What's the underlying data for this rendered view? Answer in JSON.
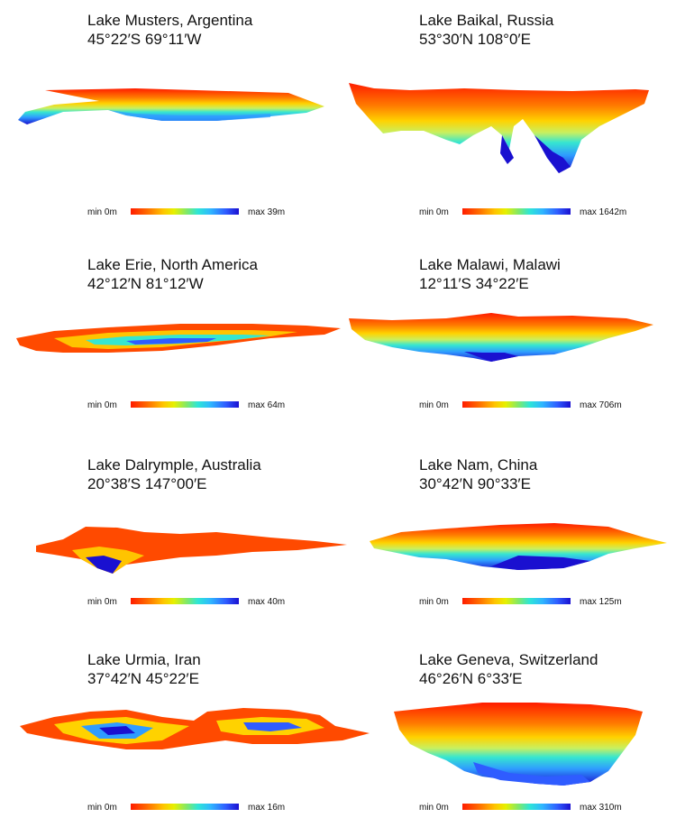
{
  "panels": [
    {
      "name": "Lake Musters, Argentina",
      "coords": "45°22′S 69°11′W",
      "min": "min 0m",
      "max": "max 39m"
    },
    {
      "name": "Lake Baikal, Russia",
      "coords": "53°30′N 108°0′E",
      "min": "min 0m",
      "max": "max 1642m"
    },
    {
      "name": "Lake Erie, North America",
      "coords": "42°12′N 81°12′W",
      "min": "min 0m",
      "max": "max 64m"
    },
    {
      "name": "Lake Malawi, Malawi",
      "coords": "12°11′S 34°22′E",
      "min": "min 0m",
      "max": "max 706m"
    },
    {
      "name": "Lake Dalrymple, Australia",
      "coords": "20°38′S 147°00′E",
      "min": "min 0m",
      "max": "max 40m"
    },
    {
      "name": "Lake Nam, China",
      "coords": "30°42′N 90°33′E",
      "min": "min 0m",
      "max": "max 125m"
    },
    {
      "name": "Lake Urmia, Iran",
      "coords": "37°42′N 45°22′E",
      "min": "min 0m",
      "max": "max 16m"
    },
    {
      "name": "Lake Geneva, Switzerland",
      "coords": "46°26′N 6°33′E",
      "min": "min 0m",
      "max": "max 310m"
    }
  ],
  "colors": {
    "shallow": "#ff1c00",
    "mid": "#ffc400",
    "teal": "#2ee6d6",
    "deep": "#1a10d0"
  }
}
